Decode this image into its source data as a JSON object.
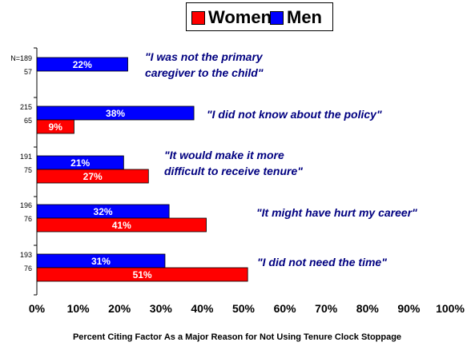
{
  "legend": [
    {
      "name": "Women",
      "color": "#ff0000"
    },
    {
      "name": "Men",
      "color": "#0000ff"
    }
  ],
  "chart_data": {
    "type": "bar",
    "orientation": "horizontal",
    "xlabel": "Percent Citing Factor As a Major Reason for Not Using Tenure Clock Stoppage",
    "xlim": [
      0,
      100
    ],
    "x_ticks": [
      "0%",
      "10%",
      "20%",
      "30%",
      "40%",
      "50%",
      "60%",
      "70%",
      "80%",
      "90%",
      "100%"
    ],
    "grid": false,
    "legend_position": "top-center",
    "categories": [
      {
        "label_lines": [
          "\"I was not the primary",
          "caregiver to the child\""
        ],
        "n_men": "N=189",
        "n_women": "57",
        "men": 22,
        "men_label": "22%",
        "women": null,
        "women_label": ""
      },
      {
        "label_lines": [
          "\"I did not know about the policy\""
        ],
        "n_men": "215",
        "n_women": "65",
        "men": 38,
        "men_label": "38%",
        "women": 9,
        "women_label": "9%"
      },
      {
        "label_lines": [
          "\"It would make it more",
          "difficult to receive tenure\""
        ],
        "n_men": "191",
        "n_women": "75",
        "men": 21,
        "men_label": "21%",
        "women": 27,
        "women_label": "27%"
      },
      {
        "label_lines": [
          "\"It might have hurt my career\""
        ],
        "n_men": "196",
        "n_women": "76",
        "men": 32,
        "men_label": "32%",
        "women": 41,
        "women_label": "41%"
      },
      {
        "label_lines": [
          "\"I did not need the time\""
        ],
        "n_men": "193",
        "n_women": "76",
        "men": 31,
        "men_label": "31%",
        "women": 51,
        "women_label": "51%"
      }
    ],
    "colors": {
      "men": "#0000ff",
      "women": "#ff0000",
      "label": "#000080"
    }
  }
}
